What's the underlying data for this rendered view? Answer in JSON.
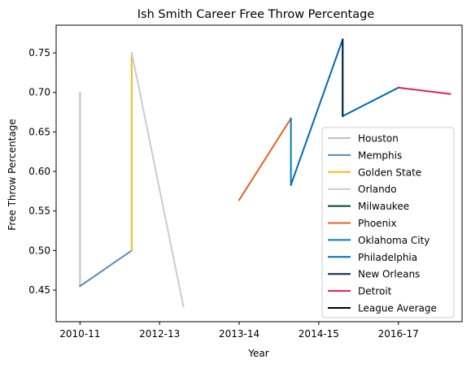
{
  "chart_data": {
    "type": "line",
    "title": "Ish Smith Career Free Throw Percentage",
    "xlabel": "Year",
    "ylabel": "Free Throw Percentage",
    "xlim": [
      -0.3,
      4.8
    ],
    "ylim": [
      0.41,
      0.785
    ],
    "x_ticks": [
      {
        "value": 0,
        "label": "2010-11"
      },
      {
        "value": 1,
        "label": "2012-13"
      },
      {
        "value": 2,
        "label": "2013-14"
      },
      {
        "value": 3,
        "label": "2014-15"
      },
      {
        "value": 4,
        "label": "2016-17"
      }
    ],
    "y_ticks": [
      {
        "value": 0.45,
        "label": "0.45"
      },
      {
        "value": 0.5,
        "label": "0.50"
      },
      {
        "value": 0.55,
        "label": "0.55"
      },
      {
        "value": 0.6,
        "label": "0.60"
      },
      {
        "value": 0.65,
        "label": "0.65"
      },
      {
        "value": 0.7,
        "label": "0.70"
      },
      {
        "value": 0.75,
        "label": "0.75"
      }
    ],
    "grid": false,
    "legend_position": "lower-right",
    "series": [
      {
        "name": "Houston",
        "color": "#BEC0C2",
        "points": [
          [
            0,
            0.7
          ],
          [
            0,
            0.455
          ]
        ]
      },
      {
        "name": "Memphis",
        "color": "#5D88B4",
        "points": [
          [
            0,
            0.455
          ],
          [
            0.65,
            0.5
          ]
        ]
      },
      {
        "name": "Golden State",
        "color": "#FDB927",
        "points": [
          [
            0.65,
            0.5
          ],
          [
            0.65,
            0.75
          ]
        ]
      },
      {
        "name": "Orlando",
        "color": "#C4CED4",
        "points": [
          [
            0.65,
            0.75
          ],
          [
            1.3,
            0.429
          ]
        ]
      },
      {
        "name": "Milwaukee",
        "color": "#00471B",
        "points": []
      },
      {
        "name": "Phoenix",
        "color": "#E56020",
        "points": [
          [
            2.0,
            0.564
          ],
          [
            2.65,
            0.667
          ]
        ]
      },
      {
        "name": "Oklahoma City",
        "color": "#007AC1",
        "points": [
          [
            2.65,
            0.667
          ],
          [
            2.65,
            0.583
          ]
        ]
      },
      {
        "name": "Philadelphia",
        "color": "#006BB6",
        "points": [
          [
            2.65,
            0.583
          ],
          [
            3.3,
            0.767
          ],
          [
            3.3,
            0.67
          ],
          [
            4.0,
            0.706
          ]
        ]
      },
      {
        "name": "New Orleans",
        "color": "#0C2340",
        "points": [
          [
            3.3,
            0.767
          ],
          [
            3.3,
            0.67
          ]
        ]
      },
      {
        "name": "Detroit",
        "color": "#E01E5A",
        "points": [
          [
            4.0,
            0.706
          ],
          [
            4.65,
            0.698
          ]
        ]
      },
      {
        "name": "League Average",
        "color": "#000000",
        "points": []
      }
    ]
  }
}
